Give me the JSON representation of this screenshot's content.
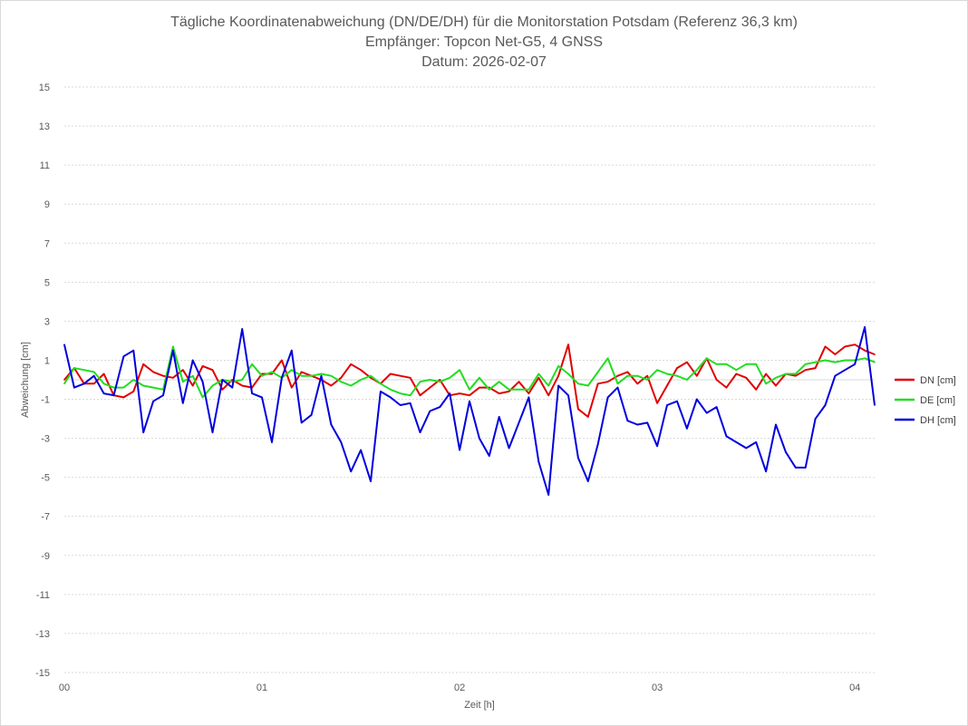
{
  "chart_data": {
    "type": "line",
    "title": [
      "Tägliche Koordinatenabweichung (DN/DE/DH) für die Monitorstation Potsdam (Referenz 36,3 km)",
      "Empfänger: Topcon Net-G5, 4 GNSS",
      "Datum: 2026-02-07"
    ],
    "xlabel": "Zeit [h]",
    "ylabel": "Abweichung [cm]",
    "xlim": [
      0,
      4.1
    ],
    "ylim": [
      -15,
      15
    ],
    "yticks": [
      15,
      13,
      11,
      9,
      7,
      5,
      3,
      1,
      -1,
      -3,
      -5,
      -7,
      -9,
      -11,
      -13,
      -15
    ],
    "xticks": [
      {
        "value": 0,
        "label": "00"
      },
      {
        "value": 1,
        "label": "01"
      },
      {
        "value": 2,
        "label": "02"
      },
      {
        "value": 3,
        "label": "03"
      },
      {
        "value": 4,
        "label": "04"
      }
    ],
    "grid": true,
    "legend_position": "right",
    "x_step": 0.05,
    "series": [
      {
        "name": "DN [cm]",
        "color": "#e00000",
        "values": [
          0.0,
          0.6,
          -0.2,
          -0.2,
          0.3,
          -0.8,
          -0.9,
          -0.6,
          0.8,
          0.4,
          0.2,
          0.1,
          0.5,
          -0.3,
          0.7,
          0.5,
          -0.5,
          0.0,
          -0.3,
          -0.4,
          0.3,
          0.3,
          1.0,
          -0.4,
          0.4,
          0.2,
          0.0,
          -0.3,
          0.1,
          0.8,
          0.5,
          0.1,
          -0.2,
          0.3,
          0.2,
          0.1,
          -0.8,
          -0.4,
          0.0,
          -0.8,
          -0.7,
          -0.8,
          -0.4,
          -0.4,
          -0.7,
          -0.6,
          -0.1,
          -0.7,
          0.1,
          -0.8,
          0.2,
          1.8,
          -1.5,
          -1.9,
          -0.2,
          -0.1,
          0.2,
          0.4,
          -0.2,
          0.2,
          -1.2,
          -0.3,
          0.6,
          0.9,
          0.2,
          1.1,
          0.0,
          -0.4,
          0.3,
          0.1,
          -0.5,
          0.3,
          -0.3,
          0.3,
          0.2,
          0.5,
          0.6,
          1.7,
          1.3,
          1.7,
          1.8,
          1.5,
          1.3
        ]
      },
      {
        "name": "DE [cm]",
        "color": "#22dd22",
        "values": [
          -0.2,
          0.6,
          0.5,
          0.4,
          -0.2,
          -0.4,
          -0.4,
          0.0,
          -0.3,
          -0.4,
          -0.5,
          1.7,
          -0.1,
          0.2,
          -0.9,
          -0.3,
          0.0,
          -0.1,
          0.0,
          0.8,
          0.2,
          0.4,
          0.1,
          0.5,
          0.2,
          0.2,
          0.3,
          0.2,
          -0.1,
          -0.3,
          0.0,
          0.2,
          -0.2,
          -0.5,
          -0.7,
          -0.8,
          -0.1,
          0.0,
          -0.1,
          0.1,
          0.5,
          -0.5,
          0.1,
          -0.5,
          -0.1,
          -0.5,
          -0.5,
          -0.5,
          0.3,
          -0.3,
          0.7,
          0.3,
          -0.2,
          -0.3,
          0.4,
          1.1,
          -0.2,
          0.2,
          0.2,
          0.0,
          0.5,
          0.3,
          0.2,
          0.0,
          0.5,
          1.1,
          0.8,
          0.8,
          0.5,
          0.8,
          0.8,
          -0.2,
          0.1,
          0.3,
          0.3,
          0.8,
          0.9,
          1.0,
          0.9,
          1.0,
          1.0,
          1.1,
          0.9
        ]
      },
      {
        "name": "DH [cm]",
        "color": "#0000dd",
        "values": [
          1.8,
          -0.4,
          -0.2,
          0.2,
          -0.7,
          -0.8,
          1.2,
          1.5,
          -2.7,
          -1.1,
          -0.8,
          1.5,
          -1.2,
          1.0,
          -0.1,
          -2.7,
          0.0,
          -0.4,
          2.6,
          -0.7,
          -0.9,
          -3.2,
          0.1,
          1.5,
          -2.2,
          -1.8,
          0.2,
          -2.3,
          -3.2,
          -4.7,
          -3.6,
          -5.2,
          -0.6,
          -0.9,
          -1.3,
          -1.2,
          -2.7,
          -1.6,
          -1.4,
          -0.7,
          -3.6,
          -1.1,
          -3.0,
          -3.9,
          -1.9,
          -3.5,
          -2.2,
          -0.9,
          -4.2,
          -5.9,
          -0.3,
          -0.8,
          -4.0,
          -5.2,
          -3.3,
          -0.9,
          -0.4,
          -2.1,
          -2.3,
          -2.2,
          -3.4,
          -1.3,
          -1.1,
          -2.5,
          -1.0,
          -1.7,
          -1.4,
          -2.9,
          -3.2,
          -3.5,
          -3.2,
          -4.7,
          -2.3,
          -3.7,
          -4.5,
          -4.5,
          -2.0,
          -1.3,
          0.2,
          0.5,
          0.8,
          2.7,
          -1.3
        ]
      }
    ]
  }
}
